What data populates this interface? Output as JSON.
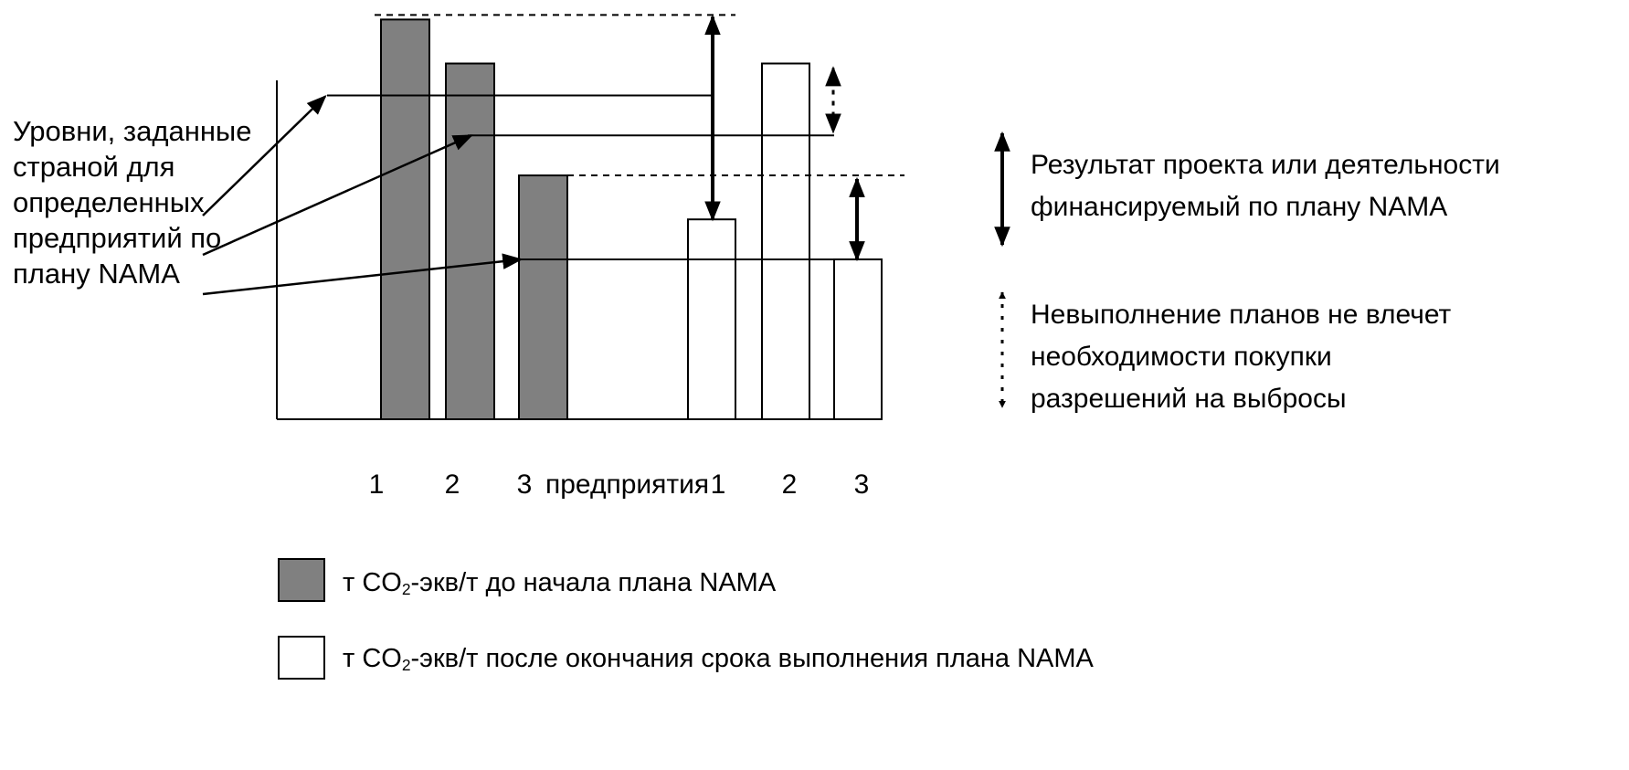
{
  "chart_data": {
    "type": "bar",
    "annotation_label": [
      "Уровни, заданные",
      "страной для",
      "определенных",
      "предприятий по",
      "плану NAMA"
    ],
    "groups": [
      {
        "categories": [
          "1",
          "2",
          "3"
        ],
        "values": [
          100,
          89,
          61
        ],
        "legend_ref": "before"
      },
      {
        "categories": [
          "1",
          "2",
          "3"
        ],
        "values": [
          50,
          89,
          40
        ],
        "legend_ref": "after"
      }
    ],
    "group_separator_label": "предприятия",
    "target_levels": [
      81,
      71,
      40
    ],
    "ylim": [
      0,
      101
    ],
    "grid": false,
    "legend_placement": "bottom",
    "legend": {
      "before": {
        "prefix": "т CO",
        "sub": "2",
        "suffix": "-экв/т до начала плана NAMA",
        "color": "#808080"
      },
      "after": {
        "prefix": "т CO",
        "sub": "2",
        "suffix": "-экв/т после окончания срока выполнения плана NAMA",
        "color": "#ffffff"
      }
    },
    "arrow_key": {
      "solid": {
        "lines": [
          "Результат проекта или деятельности",
          "финансируемый по плану NAMA"
        ]
      },
      "dotted": {
        "lines": [
          "Невыполнение планов не влечет",
          "необходимости покупки",
          "разрешений на выбросы"
        ]
      }
    },
    "colors": {
      "filled_bar": "#808080",
      "outline": "#000000",
      "background": "#ffffff"
    }
  }
}
